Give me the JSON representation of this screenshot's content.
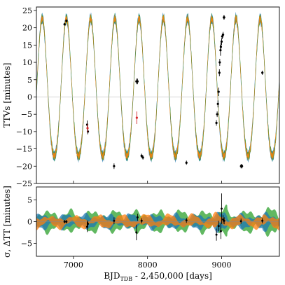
{
  "chart_data": [
    {
      "type": "line",
      "panel": "top",
      "xlabel_main": "BJD",
      "xlabel_sub": "TDB",
      "xlabel_rest": " - 2,450,000 [days]",
      "ylabel": "TTVs [minutes]",
      "xlim": [
        6500,
        9780
      ],
      "ylim": [
        -25,
        26
      ],
      "yticks": [
        25,
        20,
        15,
        10,
        5,
        0,
        -5,
        -10,
        -15,
        -20,
        -25
      ],
      "ytick_labels": [
        "25",
        "20",
        "15",
        "10",
        "5",
        "0",
        "−5",
        "−10",
        "−15",
        "−20",
        "−25"
      ],
      "grid": false,
      "model": {
        "description_note": "sinusoidal TTV model bands (three overlapping colored fits)",
        "period_days": 327,
        "amplitude_min": 21.5,
        "phase_peak_bjd": 6905,
        "band_colors": [
          "#1f77b4",
          "#2ca02c",
          "#ff7f0e"
        ],
        "band_halfwidth": [
          1.4,
          1.1,
          0.8
        ]
      },
      "series": [
        {
          "marker_color": "#000000",
          "x": [
            6880,
            6905,
            7185,
            7195,
            7548,
            7850,
            7865,
            7920,
            7938,
            8525,
            8930,
            8940,
            8950,
            8960,
            8970,
            8975,
            8985,
            8990,
            9000,
            9008,
            9020,
            9030,
            9035,
            9262,
            9275,
            9275,
            9550
          ],
          "y": [
            21,
            22,
            -8,
            -10,
            -20,
            4.5,
            4.5,
            -17,
            -17.5,
            -19,
            -7.5,
            -5,
            -2,
            1.5,
            7,
            10,
            13.5,
            14.5,
            16,
            17.5,
            18,
            23,
            23,
            -20,
            -20,
            -20,
            7
          ],
          "yerr": [
            0.4,
            0.4,
            1.2,
            0.8,
            0.8,
            0.8,
            0.8,
            0.6,
            0.6,
            0.6,
            0.8,
            0.8,
            1.0,
            1.2,
            1.0,
            1.0,
            1.6,
            1.2,
            1.0,
            0.8,
            0.8,
            0.6,
            0.6,
            0.6,
            0.6,
            0.6,
            0.6
          ]
        },
        {
          "marker_color": "#d62728",
          "x": [
            7190,
            7855
          ],
          "y": [
            -9,
            -6
          ],
          "yerr": [
            1.2,
            1.8
          ]
        }
      ]
    },
    {
      "type": "area",
      "panel": "bottom",
      "ylabel": "σ, ΔTT [minutes]",
      "xticks": [
        7000,
        8000,
        9000
      ],
      "xtick_labels": [
        "7000",
        "8000",
        "9000"
      ],
      "yticks": [
        5,
        0,
        -5
      ],
      "ytick_labels": [
        "5",
        "0",
        "−5"
      ],
      "ylim": [
        -8,
        8
      ],
      "grid": false,
      "bands": [
        {
          "color": "#2ca02c",
          "halfwidth_base": 2.2
        },
        {
          "color": "#1f77b4",
          "halfwidth_base": 1.5
        },
        {
          "color": "#ff7f0e",
          "halfwidth_base": 1.1
        }
      ],
      "residuals": {
        "x": [
          6880,
          6905,
          7185,
          7195,
          7548,
          7850,
          7865,
          7920,
          8525,
          8930,
          8960,
          8990,
          9000,
          9020,
          9035,
          9262,
          9550
        ],
        "y": [
          0,
          0,
          -1.2,
          -0.5,
          0.2,
          -2.5,
          1.0,
          0.2,
          0.3,
          -3.0,
          -1.0,
          -2.2,
          3.0,
          0.5,
          0.2,
          0.1,
          0.2
        ],
        "yerr": [
          0.4,
          0.4,
          1.2,
          0.8,
          0.8,
          1.8,
          0.8,
          0.6,
          0.6,
          1.4,
          1.2,
          1.8,
          3.5,
          1.0,
          0.8,
          0.6,
          0.6
        ]
      }
    }
  ]
}
